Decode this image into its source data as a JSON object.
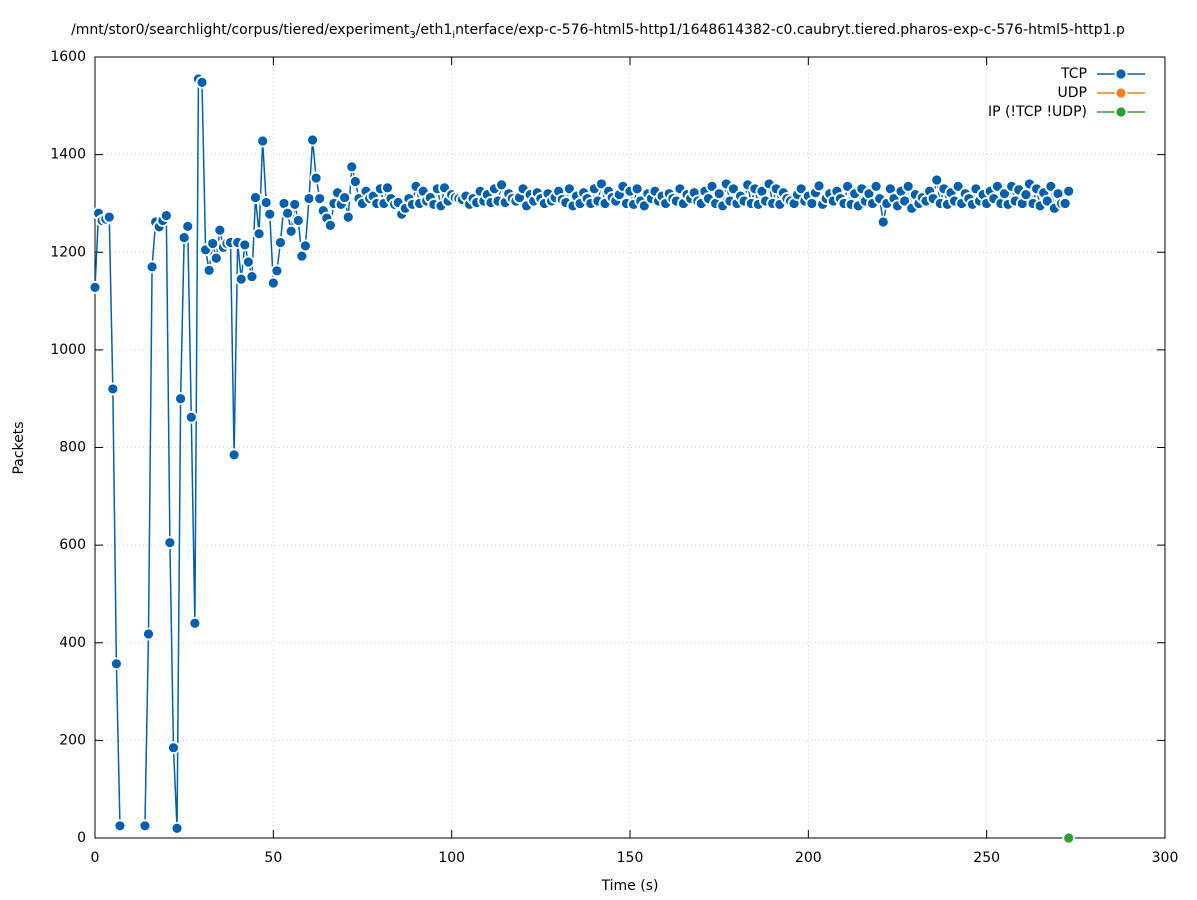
{
  "chart_data": {
    "type": "line",
    "title": [
      "/mnt/stor0/searchlight/corpus/tiered/experiment",
      "3",
      "/eth1",
      "i",
      "nterface/exp-c-576-html5-http1/1648614382-c0.caubryt.tiered.pharos-exp-c-576-html5-http1.p"
    ],
    "x_label": "Time (s)",
    "y_label": "Packets",
    "xlim": [
      0,
      300
    ],
    "xticks": [
      0,
      50,
      100,
      150,
      200,
      250,
      300
    ],
    "ylim": [
      0,
      1600
    ],
    "yticks": [
      0,
      200,
      400,
      600,
      800,
      1000,
      1200,
      1400,
      1600
    ],
    "grid": true,
    "legend": "top-right",
    "series": [
      {
        "name": "TCP",
        "color": "#0060ad",
        "x": [
          0,
          1,
          2,
          3,
          4,
          5,
          6,
          7,
          8,
          9,
          10,
          11,
          12,
          13,
          14,
          15,
          16,
          17,
          18,
          19,
          20,
          21,
          22,
          23,
          24,
          25,
          26,
          27,
          28,
          29,
          30,
          31,
          32,
          33,
          34,
          35,
          36,
          37,
          38,
          39,
          40,
          41,
          42,
          43,
          44,
          45,
          46,
          47,
          48,
          49,
          50,
          51,
          52,
          53,
          54,
          55,
          56,
          57,
          58,
          59,
          60,
          61,
          62,
          63,
          64,
          65,
          66,
          67,
          68,
          69,
          70,
          71,
          72,
          73,
          74,
          75,
          76,
          77,
          78,
          79,
          80,
          81,
          82,
          83,
          84,
          85,
          86,
          87,
          88,
          89,
          90,
          91,
          92,
          93,
          94,
          95,
          96,
          97,
          98,
          99,
          100,
          101,
          102,
          103,
          104,
          105,
          106,
          107,
          108,
          109,
          110,
          111,
          112,
          113,
          114,
          115,
          116,
          117,
          118,
          119,
          120,
          121,
          122,
          123,
          124,
          125,
          126,
          127,
          128,
          129,
          130,
          131,
          132,
          133,
          134,
          135,
          136,
          137,
          138,
          139,
          140,
          141,
          142,
          143,
          144,
          145,
          146,
          147,
          148,
          149,
          150,
          151,
          152,
          153,
          154,
          155,
          156,
          157,
          158,
          159,
          160,
          161,
          162,
          163,
          164,
          165,
          166,
          167,
          168,
          169,
          170,
          171,
          172,
          173,
          174,
          175,
          176,
          177,
          178,
          179,
          180,
          181,
          182,
          183,
          184,
          185,
          186,
          187,
          188,
          189,
          190,
          191,
          192,
          193,
          194,
          195,
          196,
          197,
          198,
          199,
          200,
          201,
          202,
          203,
          204,
          205,
          206,
          207,
          208,
          209,
          210,
          211,
          212,
          213,
          214,
          215,
          216,
          217,
          218,
          219,
          220,
          221,
          222,
          223,
          224,
          225,
          226,
          227,
          228,
          229,
          230,
          231,
          232,
          233,
          234,
          235,
          236,
          237,
          238,
          239,
          240,
          241,
          242,
          243,
          244,
          245,
          246,
          247,
          248,
          249,
          250,
          251,
          252,
          253,
          254,
          255,
          256,
          257,
          258,
          259,
          260,
          261,
          262,
          263,
          264,
          265,
          266,
          267,
          268,
          269,
          270,
          271,
          272,
          273
        ],
        "values": [
          1128,
          1280,
          1265,
          1268,
          1272,
          920,
          357,
          25,
          null,
          null,
          null,
          null,
          null,
          null,
          25,
          418,
          1170,
          1262,
          1252,
          1265,
          1275,
          605,
          185,
          20,
          900,
          1230,
          1253,
          862,
          440,
          1555,
          1548,
          1205,
          1163,
          1218,
          1188,
          1245,
          1210,
          1218,
          1220,
          785,
          1220,
          1145,
          1215,
          1180,
          1150,
          1312,
          1238,
          1428,
          1302,
          1278,
          1137,
          1162,
          1220,
          1300,
          1280,
          1243,
          1298,
          1265,
          1192,
          1213,
          1310,
          1430,
          1352,
          1310,
          1285,
          1270,
          1255,
          1300,
          1322,
          1298,
          1312,
          1272,
          1375,
          1345,
          1310,
          1300,
          1325,
          1310,
          1315,
          1300,
          1330,
          1300,
          1332,
          1310,
          1298,
          1302,
          1278,
          1290,
          1310,
          1298,
          1335,
          1300,
          1325,
          1305,
          1312,
          1298,
          1330,
          1295,
          1332,
          1305,
          1318,
          1312,
          1310,
          1308,
          1315,
          1298,
          1310,
          1302,
          1325,
          1305,
          1318,
          1302,
          1330,
          1305,
          1338,
          1302,
          1320,
          1310,
          1305,
          1312,
          1330,
          1295,
          1318,
          1305,
          1322,
          1310,
          1300,
          1320,
          1305,
          1312,
          1325,
          1308,
          1302,
          1330,
          1295,
          1315,
          1300,
          1322,
          1310,
          1300,
          1330,
          1305,
          1340,
          1300,
          1325,
          1312,
          1305,
          1318,
          1335,
          1300,
          1325,
          1298,
          1330,
          1305,
          1295,
          1320,
          1310,
          1325,
          1305,
          1315,
          1300,
          1320,
          1310,
          1305,
          1330,
          1300,
          1318,
          1310,
          1322,
          1305,
          1300,
          1325,
          1310,
          1335,
          1300,
          1320,
          1295,
          1340,
          1305,
          1330,
          1300,
          1315,
          1305,
          1338,
          1300,
          1330,
          1298,
          1325,
          1305,
          1340,
          1300,
          1330,
          1298,
          1322,
          1310,
          1305,
          1300,
          1318,
          1330,
          1305,
          1315,
          1300,
          1322,
          1336,
          1298,
          1310,
          1320,
          1305,
          1325,
          1310,
          1300,
          1335,
          1298,
          1320,
          1295,
          1330,
          1305,
          1320,
          1300,
          1335,
          1310,
          1262,
          1300,
          1330,
          1310,
          1295,
          1325,
          1305,
          1335,
          1290,
          1318,
          1300,
          1312,
          1305,
          1325,
          1310,
          1348,
          1300,
          1330,
          1298,
          1322,
          1305,
          1335,
          1300,
          1320,
          1310,
          1298,
          1330,
          1305,
          1318,
          1300,
          1325,
          1310,
          1335,
          1300,
          1320,
          1298,
          1335,
          1305,
          1328,
          1300,
          1318,
          1340,
          1300,
          1330,
          1295,
          1322,
          1305,
          1335,
          1290,
          1320,
          1300,
          1300,
          1325
        ]
      },
      {
        "name": "UDP",
        "color": "#ff7f0e",
        "x": [],
        "values": []
      },
      {
        "name": "IP (!TCP  !UDP)",
        "color": "#2ca02c",
        "x": [
          273
        ],
        "values": [
          0
        ]
      }
    ]
  }
}
